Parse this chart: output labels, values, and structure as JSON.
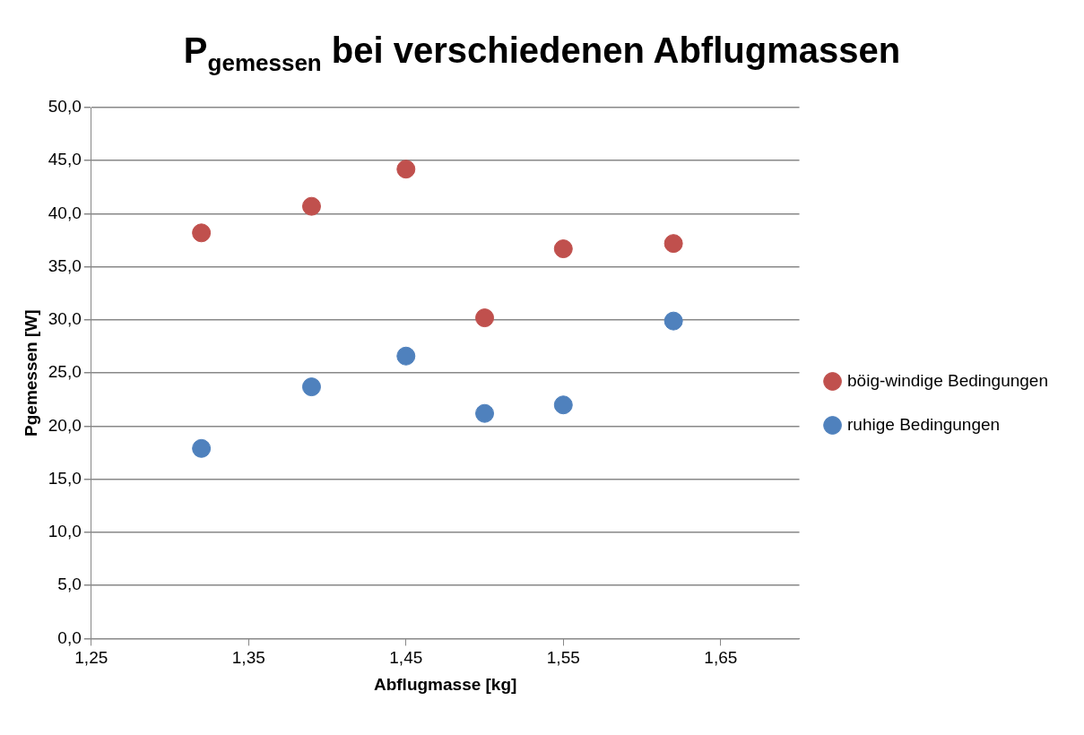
{
  "chart_data": {
    "type": "scatter",
    "title": "P$_{gemessen}$ bei verschiedenen Abflugmassen",
    "xlabel": "Abflugmasse [kg]",
    "ylabel": "Pgemessen [W]",
    "x": [
      1.32,
      1.39,
      1.45,
      1.5,
      1.55,
      1.62
    ],
    "series": [
      {
        "name": "böig-windige Bedingungen",
        "color": "#c0504d",
        "values": [
          38.2,
          40.7,
          44.2,
          30.2,
          36.7,
          37.2
        ]
      },
      {
        "name": "ruhige Bedingungen",
        "color": "#4f81bd",
        "values": [
          17.9,
          23.7,
          26.6,
          21.2,
          22.0,
          29.9
        ]
      }
    ],
    "xlim": [
      1.25,
      1.7
    ],
    "xticks": [
      {
        "value": 1.25,
        "label": "1,25"
      },
      {
        "value": 1.35,
        "label": "1,35"
      },
      {
        "value": 1.45,
        "label": "1,45"
      },
      {
        "value": 1.55,
        "label": "1,55"
      },
      {
        "value": 1.65,
        "label": "1,65"
      }
    ],
    "ylim": [
      0,
      50
    ],
    "yticks": [
      {
        "value": 0,
        "label": "0,0"
      },
      {
        "value": 5,
        "label": "5,0"
      },
      {
        "value": 10,
        "label": "10,0"
      },
      {
        "value": 15,
        "label": "15,0"
      },
      {
        "value": 20,
        "label": "20,0"
      },
      {
        "value": 25,
        "label": "25,0"
      },
      {
        "value": 30,
        "label": "30,0"
      },
      {
        "value": 35,
        "label": "35,0"
      },
      {
        "value": 40,
        "label": "40,0"
      },
      {
        "value": 45,
        "label": "45,0"
      },
      {
        "value": 50,
        "label": "50,0"
      }
    ],
    "grid": "y",
    "legend": "right",
    "marker": "circle"
  }
}
